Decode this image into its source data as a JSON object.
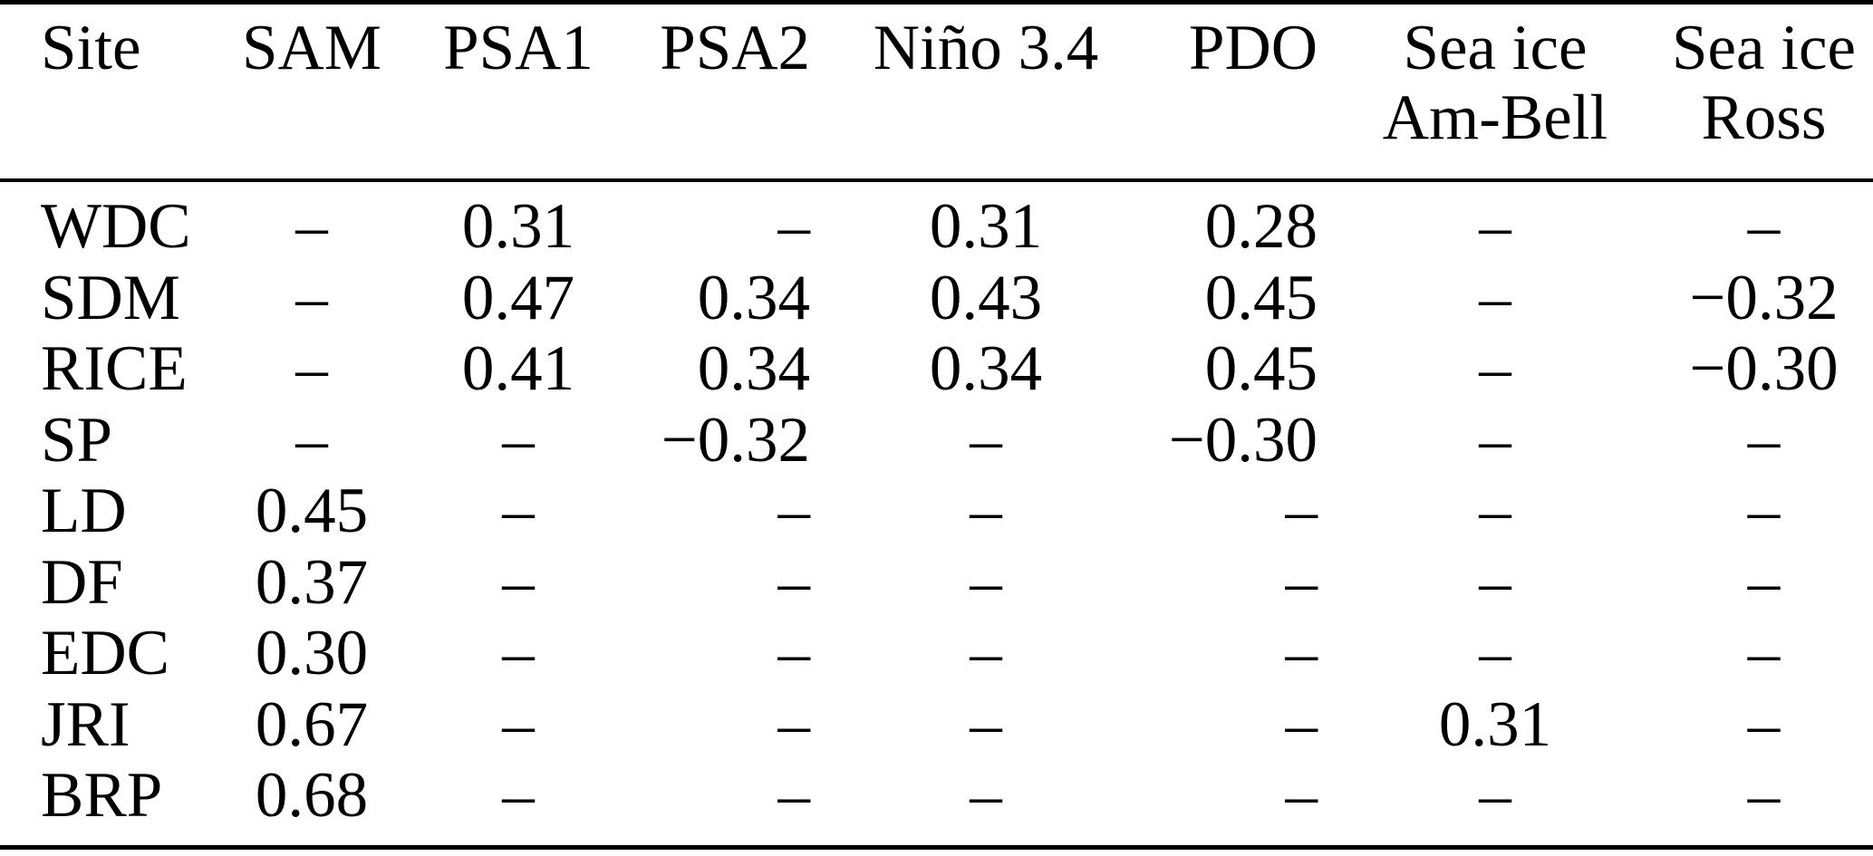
{
  "table": {
    "na_symbol": "–",
    "columns": [
      {
        "id": "site",
        "line1": "Site",
        "line2": ""
      },
      {
        "id": "sam",
        "line1": "SAM",
        "line2": ""
      },
      {
        "id": "psa1",
        "line1": "PSA1",
        "line2": ""
      },
      {
        "id": "psa2",
        "line1": "PSA2",
        "line2": ""
      },
      {
        "id": "nino34",
        "line1": "Niño 3.4",
        "line2": ""
      },
      {
        "id": "pdo",
        "line1": "PDO",
        "line2": ""
      },
      {
        "id": "seaice-ambell",
        "line1": "Sea ice",
        "line2": "Am-Bell"
      },
      {
        "id": "seaice-ross",
        "line1": "Sea ice",
        "line2": "Ross"
      }
    ],
    "rows": [
      {
        "site": "WDC",
        "cells": [
          "–",
          "0.31",
          "–",
          "0.31",
          "0.28",
          "–",
          "–"
        ]
      },
      {
        "site": "SDM",
        "cells": [
          "–",
          "0.47",
          "0.34",
          "0.43",
          "0.45",
          "–",
          "−0.32"
        ]
      },
      {
        "site": "RICE",
        "cells": [
          "–",
          "0.41",
          "0.34",
          "0.34",
          "0.45",
          "–",
          "−0.30"
        ]
      },
      {
        "site": "SP",
        "cells": [
          "–",
          "–",
          "−0.32",
          "–",
          "−0.30",
          "–",
          "–"
        ]
      },
      {
        "site": "LD",
        "cells": [
          "0.45",
          "–",
          "–",
          "–",
          "–",
          "–",
          "–"
        ]
      },
      {
        "site": "DF",
        "cells": [
          "0.37",
          "–",
          "–",
          "–",
          "–",
          "–",
          "–"
        ]
      },
      {
        "site": "EDC",
        "cells": [
          "0.30",
          "–",
          "–",
          "–",
          "–",
          "–",
          "–"
        ]
      },
      {
        "site": "JRI",
        "cells": [
          "0.67",
          "–",
          "–",
          "–",
          "–",
          "0.31",
          "–"
        ]
      },
      {
        "site": "BRP",
        "cells": [
          "0.68",
          "–",
          "–",
          "–",
          "–",
          "–",
          "–"
        ]
      }
    ]
  }
}
